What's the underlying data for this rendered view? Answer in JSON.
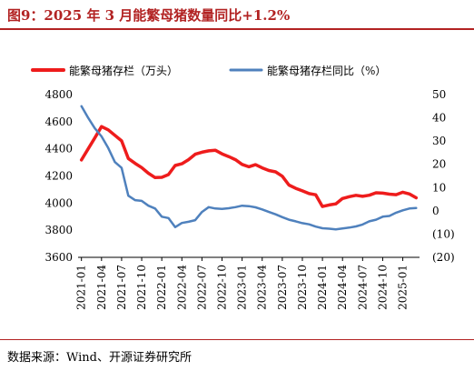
{
  "figure": {
    "title": "图9：2025 年 3 月能繁母猪数量同比+1.2%",
    "source": "数据来源：Wind、开源证券研究所"
  },
  "chart_data": {
    "type": "line",
    "legend_placement": "top",
    "grid": false,
    "x_tick_labels": [
      "2021-01",
      "2021-04",
      "2021-07",
      "2021-10",
      "2022-01",
      "2022-04",
      "2022-07",
      "2022-10",
      "2023-01",
      "2023-04",
      "2023-07",
      "2023-10",
      "2024-01",
      "2024-04",
      "2024-07",
      "2024-10",
      "2025-01"
    ],
    "x": [
      "2021-01",
      "2021-02",
      "2021-03",
      "2021-04",
      "2021-05",
      "2021-06",
      "2021-07",
      "2021-08",
      "2021-09",
      "2021-10",
      "2021-11",
      "2021-12",
      "2022-01",
      "2022-02",
      "2022-03",
      "2022-04",
      "2022-05",
      "2022-06",
      "2022-07",
      "2022-08",
      "2022-09",
      "2022-10",
      "2022-11",
      "2022-12",
      "2023-01",
      "2023-02",
      "2023-03",
      "2023-04",
      "2023-05",
      "2023-06",
      "2023-07",
      "2023-08",
      "2023-09",
      "2023-10",
      "2023-11",
      "2023-12",
      "2024-01",
      "2024-02",
      "2024-03",
      "2024-04",
      "2024-05",
      "2024-06",
      "2024-07",
      "2024-08",
      "2024-09",
      "2024-10",
      "2024-11",
      "2024-12",
      "2025-01",
      "2025-02",
      "2025-03"
    ],
    "y_left": {
      "ylim": [
        3600,
        4800
      ],
      "ticks": [
        "3600",
        "3800",
        "4000",
        "4200",
        "4400",
        "4600",
        "4800"
      ]
    },
    "y_right": {
      "ylim": [
        -20,
        50
      ],
      "ticks": [
        {
          "value": 50,
          "label": "50",
          "color": "#000000"
        },
        {
          "value": 40,
          "label": "40",
          "color": "#000000"
        },
        {
          "value": 30,
          "label": "30",
          "color": "#000000"
        },
        {
          "value": 20,
          "label": "20",
          "color": "#000000"
        },
        {
          "value": 10,
          "label": "10",
          "color": "#000000"
        },
        {
          "value": 0,
          "label": "0",
          "color": "#000000"
        },
        {
          "value": -10,
          "label": "(10)",
          "color": "#e00000"
        },
        {
          "value": -20,
          "label": "(20)",
          "color": "#e00000"
        }
      ]
    },
    "series": [
      {
        "name": "能繁母猪存栏（万头）",
        "axis": "left",
        "color": "#ee1c1c",
        "values": [
          4318,
          4400,
          4480,
          4564,
          4540,
          4500,
          4459,
          4329,
          4293,
          4262,
          4220,
          4188,
          4190,
          4210,
          4277,
          4290,
          4320,
          4360,
          4375,
          4385,
          4390,
          4363,
          4343,
          4320,
          4285,
          4268,
          4283,
          4260,
          4240,
          4230,
          4198,
          4133,
          4109,
          4090,
          4070,
          4061,
          3975,
          3986,
          3994,
          4034,
          4047,
          4057,
          4050,
          4058,
          4076,
          4073,
          4066,
          4062,
          4080,
          4067,
          4039
        ]
      },
      {
        "name": "能繁母猪存栏同比（%）",
        "axis": "right",
        "color": "#4f81bd",
        "values": [
          45.0,
          40.0,
          35.5,
          32.0,
          27.0,
          21.0,
          18.5,
          6.5,
          4.6,
          4.3,
          2.2,
          1.0,
          -2.5,
          -3.1,
          -7.0,
          -5.2,
          -4.7,
          -4.0,
          -0.5,
          1.6,
          1.0,
          0.8,
          1.1,
          1.6,
          2.2,
          2.0,
          1.5,
          0.6,
          -0.5,
          -1.5,
          -2.7,
          -3.8,
          -4.5,
          -5.3,
          -5.8,
          -6.8,
          -7.5,
          -7.7,
          -8.0,
          -7.6,
          -7.2,
          -6.7,
          -5.9,
          -4.5,
          -3.8,
          -2.5,
          -2.2,
          -0.8,
          0.2,
          1.0,
          1.2
        ]
      }
    ]
  }
}
